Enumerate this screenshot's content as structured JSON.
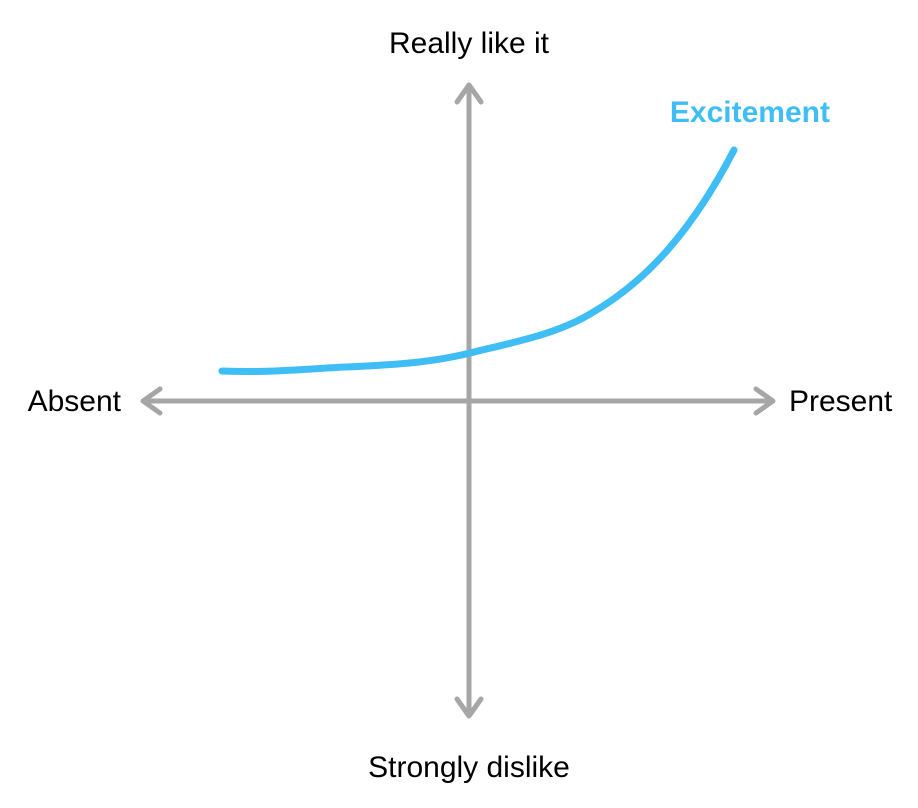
{
  "axes": {
    "top_label": "Really like it",
    "bottom_label": "Strongly dislike",
    "left_label": "Absent",
    "right_label": "Present",
    "color": "#a6a6a6"
  },
  "curve": {
    "label": "Excitement",
    "color": "#3fbdf5"
  }
}
